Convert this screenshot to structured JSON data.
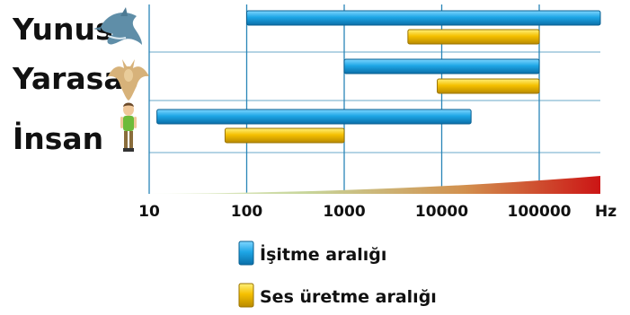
{
  "chart_data": {
    "type": "bar",
    "orientation": "horizontal-range",
    "x_scale": "log",
    "categories": [
      "Yunus",
      "Yarasa",
      "İnsan"
    ],
    "icons": [
      "dolphin-icon",
      "bat-icon",
      "person-icon"
    ],
    "x_ticks": [
      "10",
      "100",
      "1000",
      "10000",
      "100000"
    ],
    "x_unit": "Hz",
    "xlim": [
      10,
      1000000
    ],
    "grid": true,
    "legend_position": "bottom",
    "series": [
      {
        "name": "İşitme aralığı",
        "color": "#1ea6e6",
        "ranges": [
          [
            100,
            600000
          ],
          [
            1000,
            100000
          ],
          [
            12,
            20000
          ]
        ]
      },
      {
        "name": "Ses üretme aralığı",
        "color": "#f5c000",
        "ranges": [
          [
            4500,
            100000
          ],
          [
            9000,
            100000
          ],
          [
            60,
            1000
          ]
        ]
      }
    ]
  }
}
